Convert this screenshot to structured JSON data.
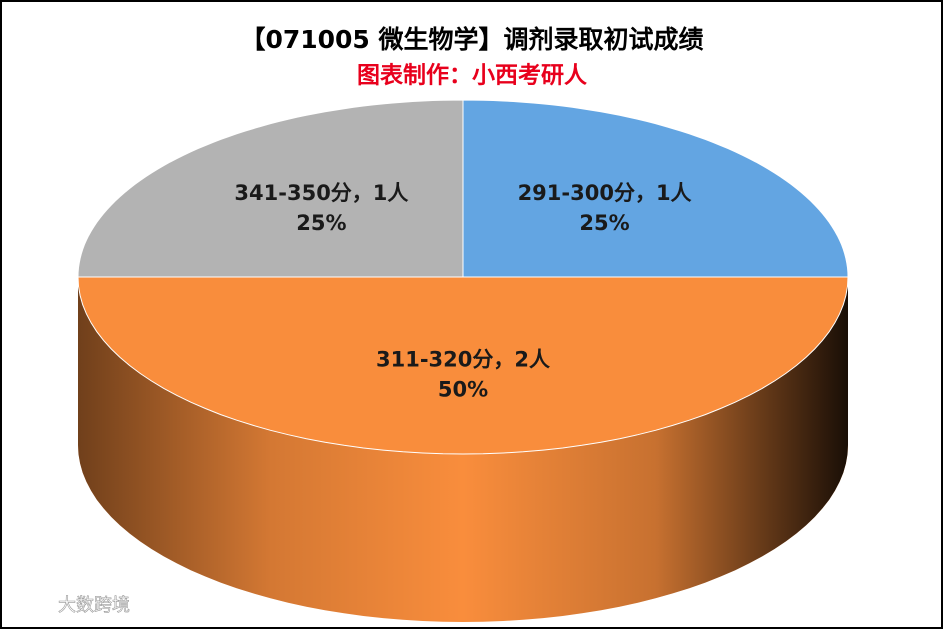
{
  "chart_data": {
    "type": "pie3d",
    "title": "【071005 微生物学】调剂录取初试成绩",
    "subtitle": "图表制作：小西考研人",
    "categories": [
      "291-300分，1人",
      "311-320分，2人",
      "341-350分，1人"
    ],
    "values": [
      25,
      50,
      25
    ],
    "value_labels": [
      "25%",
      "50%",
      "25%"
    ],
    "colors": [
      "#63a5e2",
      "#f98d3c",
      "#b3b3b3"
    ],
    "watermark": "大数跨境"
  }
}
